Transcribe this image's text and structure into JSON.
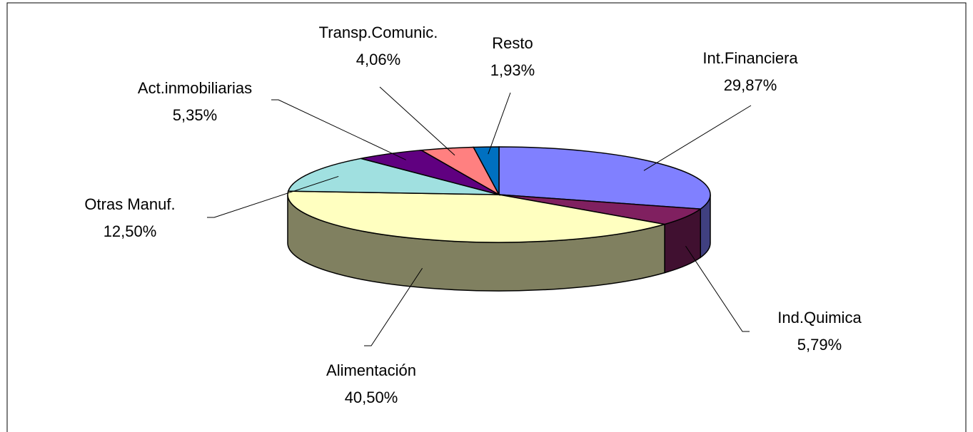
{
  "chart_data": {
    "type": "pie",
    "categories": [
      "Int.Financiera",
      "Ind.Quimica",
      "Alimentación",
      "Otras Manuf.",
      "Act.inmobiliarias",
      "Transp.Comunic.",
      "Resto"
    ],
    "values": [
      29.87,
      5.79,
      40.5,
      12.5,
      5.35,
      4.06,
      1.93
    ],
    "value_labels": [
      "29,87%",
      "5,79%",
      "40,50%",
      "12,50%",
      "5,35%",
      "4,06%",
      "1,93%"
    ],
    "colors": [
      "#8080ff",
      "#802060",
      "#ffffc0",
      "#a0e0e0",
      "#600080",
      "#ff8080",
      "#0070c0"
    ]
  }
}
